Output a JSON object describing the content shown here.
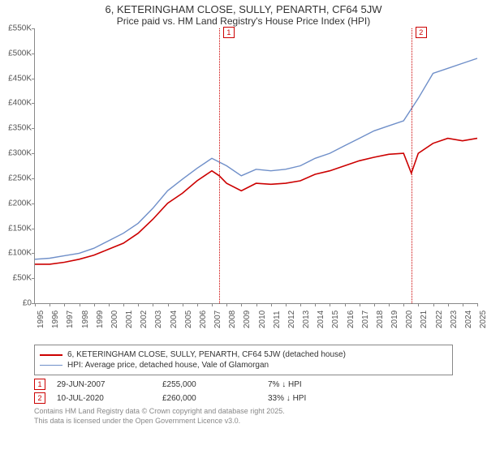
{
  "title_line1": "6, KETERINGHAM CLOSE, SULLY, PENARTH, CF64 5JW",
  "title_line2": "Price paid vs. HM Land Registry's House Price Index (HPI)",
  "chart": {
    "type": "line",
    "background_color": "#ffffff",
    "axis_color": "#888888",
    "y": {
      "min": 0,
      "max": 550000,
      "step": 50000,
      "labels": [
        "£0",
        "£50K",
        "£100K",
        "£150K",
        "£200K",
        "£250K",
        "£300K",
        "£350K",
        "£400K",
        "£450K",
        "£500K",
        "£550K"
      ]
    },
    "x": {
      "min": 1995,
      "max": 2025,
      "labels": [
        "1995",
        "1996",
        "1997",
        "1998",
        "1999",
        "2000",
        "2001",
        "2002",
        "2003",
        "2004",
        "2005",
        "2006",
        "2007",
        "2008",
        "2009",
        "2010",
        "2011",
        "2012",
        "2013",
        "2014",
        "2015",
        "2016",
        "2017",
        "2018",
        "2019",
        "2020",
        "2021",
        "2022",
        "2023",
        "2024",
        "2025"
      ]
    },
    "series": [
      {
        "name": "property",
        "label": "6, KETERINGHAM CLOSE, SULLY, PENARTH, CF64 5JW (detached house)",
        "color": "#cc0000",
        "line_width": 1.6,
        "data": [
          [
            1995,
            78000
          ],
          [
            1996,
            78000
          ],
          [
            1997,
            82000
          ],
          [
            1998,
            88000
          ],
          [
            1999,
            96000
          ],
          [
            2000,
            108000
          ],
          [
            2001,
            120000
          ],
          [
            2002,
            140000
          ],
          [
            2003,
            168000
          ],
          [
            2004,
            200000
          ],
          [
            2005,
            220000
          ],
          [
            2006,
            245000
          ],
          [
            2007,
            265000
          ],
          [
            2007.5,
            255000
          ],
          [
            2008,
            240000
          ],
          [
            2009,
            225000
          ],
          [
            2010,
            240000
          ],
          [
            2011,
            238000
          ],
          [
            2012,
            240000
          ],
          [
            2013,
            245000
          ],
          [
            2014,
            258000
          ],
          [
            2015,
            265000
          ],
          [
            2016,
            275000
          ],
          [
            2017,
            285000
          ],
          [
            2018,
            292000
          ],
          [
            2019,
            298000
          ],
          [
            2020,
            300000
          ],
          [
            2020.53,
            260000
          ],
          [
            2021,
            300000
          ],
          [
            2022,
            320000
          ],
          [
            2023,
            330000
          ],
          [
            2024,
            325000
          ],
          [
            2025,
            330000
          ]
        ]
      },
      {
        "name": "hpi",
        "label": "HPI: Average price, detached house, Vale of Glamorgan",
        "color": "#6f8fc9",
        "line_width": 1.4,
        "data": [
          [
            1995,
            88000
          ],
          [
            1996,
            90000
          ],
          [
            1997,
            95000
          ],
          [
            1998,
            100000
          ],
          [
            1999,
            110000
          ],
          [
            2000,
            125000
          ],
          [
            2001,
            140000
          ],
          [
            2002,
            160000
          ],
          [
            2003,
            190000
          ],
          [
            2004,
            225000
          ],
          [
            2005,
            248000
          ],
          [
            2006,
            270000
          ],
          [
            2007,
            290000
          ],
          [
            2008,
            275000
          ],
          [
            2009,
            255000
          ],
          [
            2010,
            268000
          ],
          [
            2011,
            265000
          ],
          [
            2012,
            268000
          ],
          [
            2013,
            275000
          ],
          [
            2014,
            290000
          ],
          [
            2015,
            300000
          ],
          [
            2016,
            315000
          ],
          [
            2017,
            330000
          ],
          [
            2018,
            345000
          ],
          [
            2019,
            355000
          ],
          [
            2020,
            365000
          ],
          [
            2021,
            410000
          ],
          [
            2022,
            460000
          ],
          [
            2023,
            470000
          ],
          [
            2024,
            480000
          ],
          [
            2025,
            490000
          ]
        ]
      }
    ],
    "markers": [
      {
        "n": "1",
        "year": 2007.49,
        "date": "29-JUN-2007",
        "price": "£255,000",
        "delta": "7% ↓ HPI"
      },
      {
        "n": "2",
        "year": 2020.53,
        "date": "10-JUL-2020",
        "price": "£260,000",
        "delta": "33% ↓ HPI"
      }
    ]
  },
  "footer_line1": "Contains HM Land Registry data © Crown copyright and database right 2025.",
  "footer_line2": "This data is licensed under the Open Government Licence v3.0."
}
